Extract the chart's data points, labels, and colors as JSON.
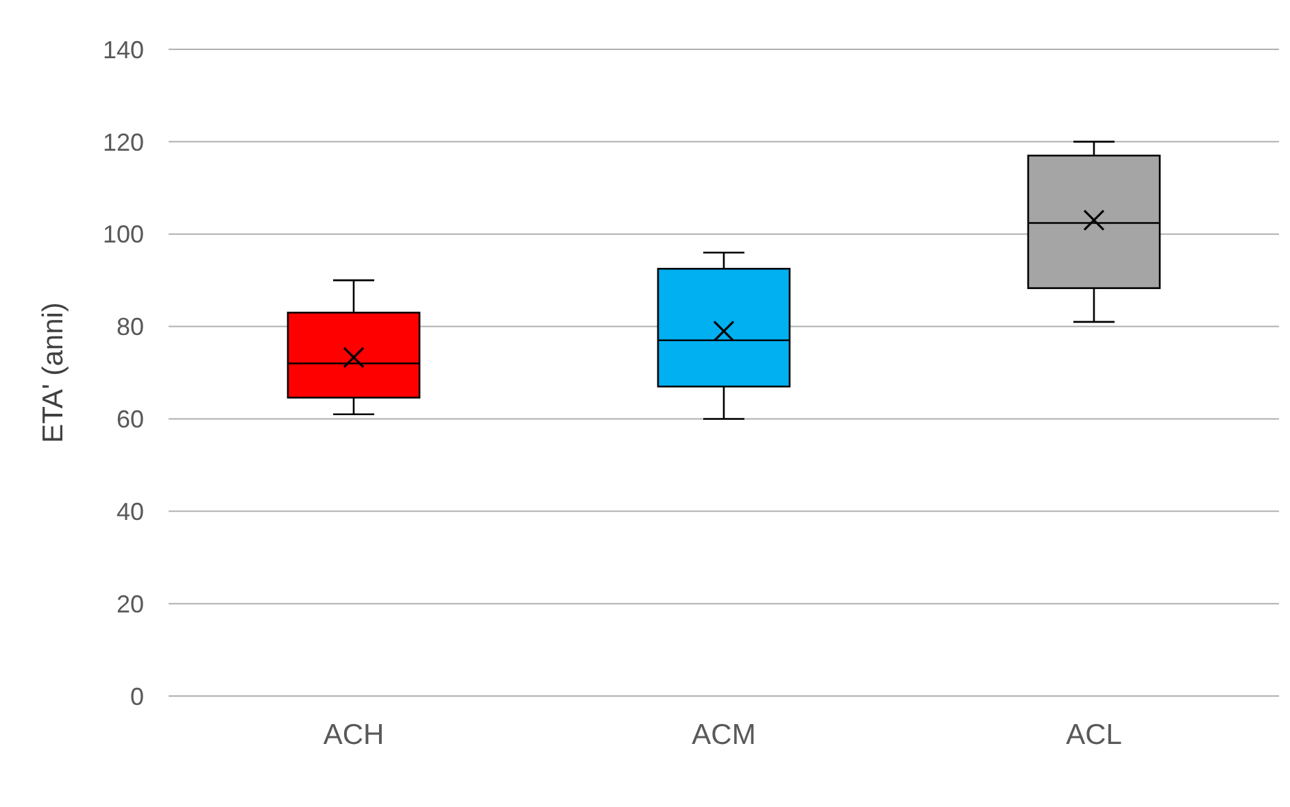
{
  "chart_data": {
    "type": "box",
    "ylabel": "ETA' (anni)",
    "categories": [
      "ACH",
      "ACM",
      "ACL"
    ],
    "colors": [
      "#ff0000",
      "#00b0f0",
      "#a5a5a5"
    ],
    "boxes": [
      {
        "low": 61,
        "q1": 64.6,
        "median": 72,
        "q3": 83,
        "high": 90,
        "mean": 73.3
      },
      {
        "low": 60,
        "q1": 67,
        "median": 77,
        "q3": 92.5,
        "high": 96,
        "mean": 79
      },
      {
        "low": 81,
        "q1": 88.3,
        "median": 102.4,
        "q3": 117,
        "high": 120,
        "mean": 103
      }
    ],
    "ylim": [
      0,
      140
    ],
    "yticks": [
      0,
      20,
      40,
      60,
      80,
      100,
      120,
      140
    ],
    "grid": "y",
    "marker": "cross",
    "legend": false
  }
}
